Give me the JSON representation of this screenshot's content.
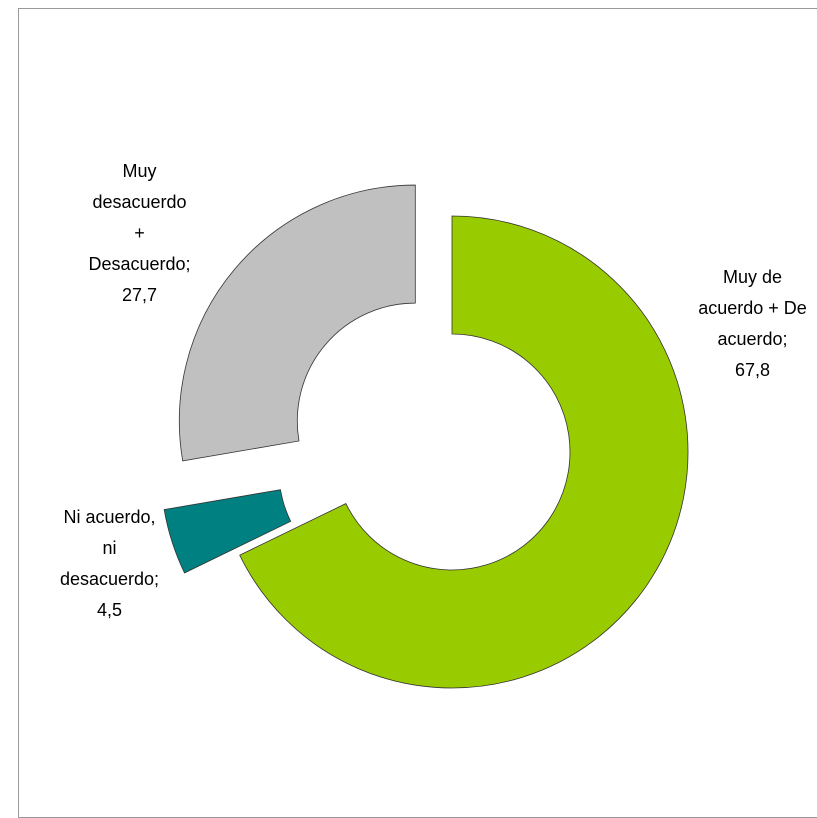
{
  "chart_data": {
    "type": "donut",
    "categories": [
      "Muy de acuerdo + De acuerdo;",
      "Ni acuerdo, ni desacuerdo;",
      "Muy desacuerdo + Desacuerdo;"
    ],
    "values": [
      67.8,
      4.5,
      27.7
    ],
    "value_labels": [
      "67,8",
      "4,5",
      "27,7"
    ],
    "colors": [
      "#99cc00",
      "#008080",
      "#c0c0c0"
    ]
  }
}
